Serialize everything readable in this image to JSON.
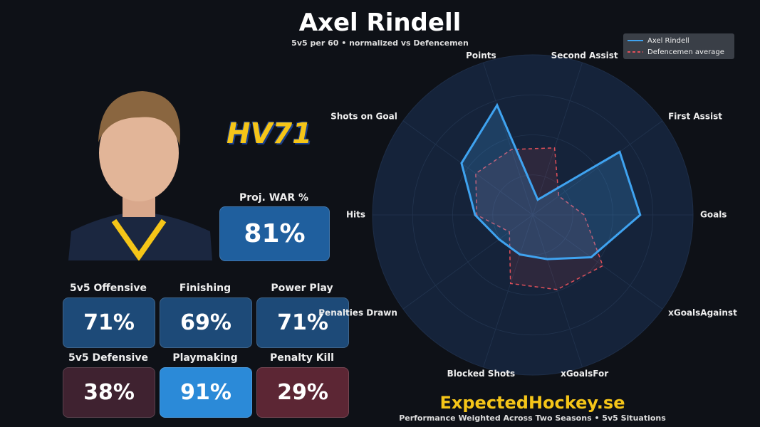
{
  "header": {
    "title": "Axel Rindell",
    "subtitle": "5v5 per 60  •  normalized vs Defencemen",
    "logo": "HV71"
  },
  "war": {
    "label": "Proj. WAR %",
    "value": "81%",
    "color": "#1f5f9e"
  },
  "tiles": [
    {
      "label": "5v5 Offensive",
      "value": "71%",
      "color": "#1d4a78"
    },
    {
      "label": "Finishing",
      "value": "69%",
      "color": "#1d4a78"
    },
    {
      "label": "Power Play",
      "value": "71%",
      "color": "#1d4a78"
    },
    {
      "label": "5v5 Defensive",
      "value": "38%",
      "color": "#3f2230"
    },
    {
      "label": "Playmaking",
      "value": "91%",
      "color": "#2b8ad8"
    },
    {
      "label": "Penalty Kill",
      "value": "29%",
      "color": "#5c2634"
    }
  ],
  "footer": {
    "brand": "ExpectedHockey.se",
    "note": "Performance Weighted Across Two Seasons  •  5v5 Situations"
  },
  "chart_data": {
    "type": "radar",
    "categories": [
      "Goals",
      "First Assist",
      "Second Assist",
      "Points",
      "Shots on Goal",
      "Hits",
      "Penalties Drawn",
      "Blocked Shots",
      "xGoalsFor",
      "xGoalsAgainst"
    ],
    "rlim": [
      0,
      1
    ],
    "legend": "upper right",
    "series": [
      {
        "name": "Axel Rindell",
        "color": "#3fa3f0",
        "dash": false,
        "values": [
          0.67,
          0.67,
          0.1,
          0.72,
          0.55,
          0.36,
          0.26,
          0.26,
          0.29,
          0.45
        ]
      },
      {
        "name": "Defencemen average",
        "color": "#e0505a",
        "dash": true,
        "values": [
          0.32,
          0.2,
          0.44,
          0.43,
          0.44,
          0.35,
          0.18,
          0.45,
          0.49,
          0.54
        ]
      }
    ]
  }
}
